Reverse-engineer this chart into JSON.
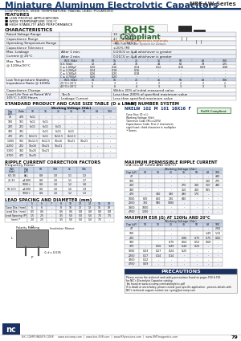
{
  "title": "Miniature Aluminum Electrolytic Capacitors",
  "series": "NRE-LW Series",
  "subtitle": "LOW PROFILE, WIDE TEMPERATURE, RADIAL LEAD, POLARIZED",
  "features": [
    "FEATURES",
    "■ LOW PROFILE APPLICATIONS",
    "■ WIDE TEMPERATURE 105°C",
    "■ HIGH STABILITY AND PERFORMANCE"
  ],
  "rohs_line1": "RoHS",
  "rohs_line2": "Compliant",
  "rohs_sub": "Includes all homogeneous materials",
  "rohs_note": "*See Part Number System for Details",
  "char_title": "CHARACTERISTICS",
  "std_title": "STANDARD PRODUCT AND CASE SIZE TABLE (D x L mm)",
  "pn_title": "PART NUMBER SYSTEM",
  "pn_line": "NRELW 102 M 101 16X16 F",
  "ripple_title": "MAXIMUM PERMISSIBLE RIPPLE CURRENT",
  "ripple_sub": "(mA rms AT 120Hz AND 105°C)",
  "esr_title": "MAXIMUM ESR (Ω) AT 120Hz AND 20°C",
  "ripple_corr_title": "RIPPLE CURRENT CORRECTION FACTORS",
  "lead_title": "LEAD SPACING AND DIAMETER (mm)",
  "precautions_title": "PRECAUTIONS",
  "footer": "NIC COMPONENTS CORP.     www.niccomp.com  |  www.line-ESR.com  |  www.RFpassives.com  |  www.SMTmagnetics.com",
  "bg": "#ffffff",
  "blue": "#1a3a6b",
  "light_blue_header": "#c8d4e8",
  "row_alt": "#eef1f7",
  "row_white": "#ffffff",
  "border": "#999999",
  "text": "#111111",
  "green": "#2d6a2d",
  "orange": "#cc4400",
  "page_num": "79"
}
